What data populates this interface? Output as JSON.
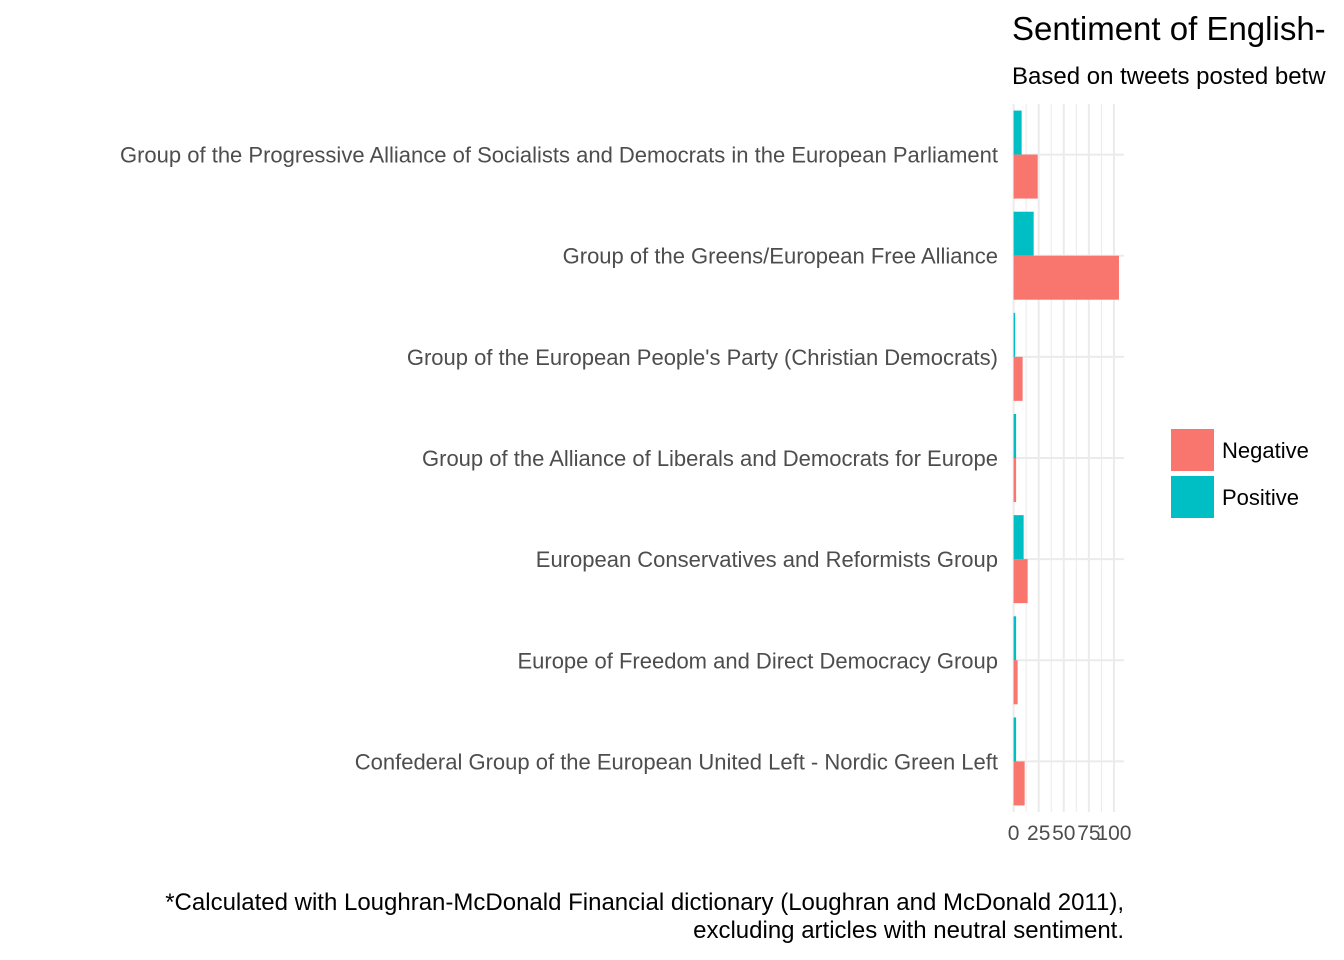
{
  "chart_data": {
    "type": "bar",
    "orientation": "horizontal",
    "title": "Sentiment of English-",
    "subtitle": "Based on tweets posted betw",
    "xlabel": "",
    "ylabel": "",
    "caption_lines": [
      "*Calculated with Loughran-McDonald Financial dictionary (Loughran and McDonald 2011),",
      "excluding articles with neutral sentiment."
    ],
    "categories": [
      "Group of the Progressive Alliance of Socialists and Democrats in the European Parliament",
      "Group of the Greens/European Free Alliance",
      "Group of the European People's Party (Christian Democrats)",
      "Group of the Alliance of Liberals and Democrats for Europe",
      "European Conservatives and Reformists Group",
      "Europe of Freedom and Direct Democracy Group",
      "Confederal Group of the European United Left - Nordic Green Left"
    ],
    "series": [
      {
        "name": "Positive",
        "color": "#00BFC4",
        "values": [
          8,
          20,
          1.5,
          2.5,
          10,
          2.5,
          2.5
        ]
      },
      {
        "name": "Negative",
        "color": "#F8766D",
        "values": [
          24,
          105,
          9,
          2.5,
          14,
          4,
          11
        ]
      }
    ],
    "xlim": [
      -1.6,
      110
    ],
    "xticks": [
      0,
      25,
      50,
      75,
      100
    ],
    "xtick_labels": [
      "0",
      "25",
      "50",
      "75",
      "100"
    ],
    "grid": true,
    "legend": {
      "position": "right",
      "entries": [
        {
          "label": "Negative",
          "color": "#F8766D"
        },
        {
          "label": "Positive",
          "color": "#00BFC4"
        }
      ]
    }
  }
}
